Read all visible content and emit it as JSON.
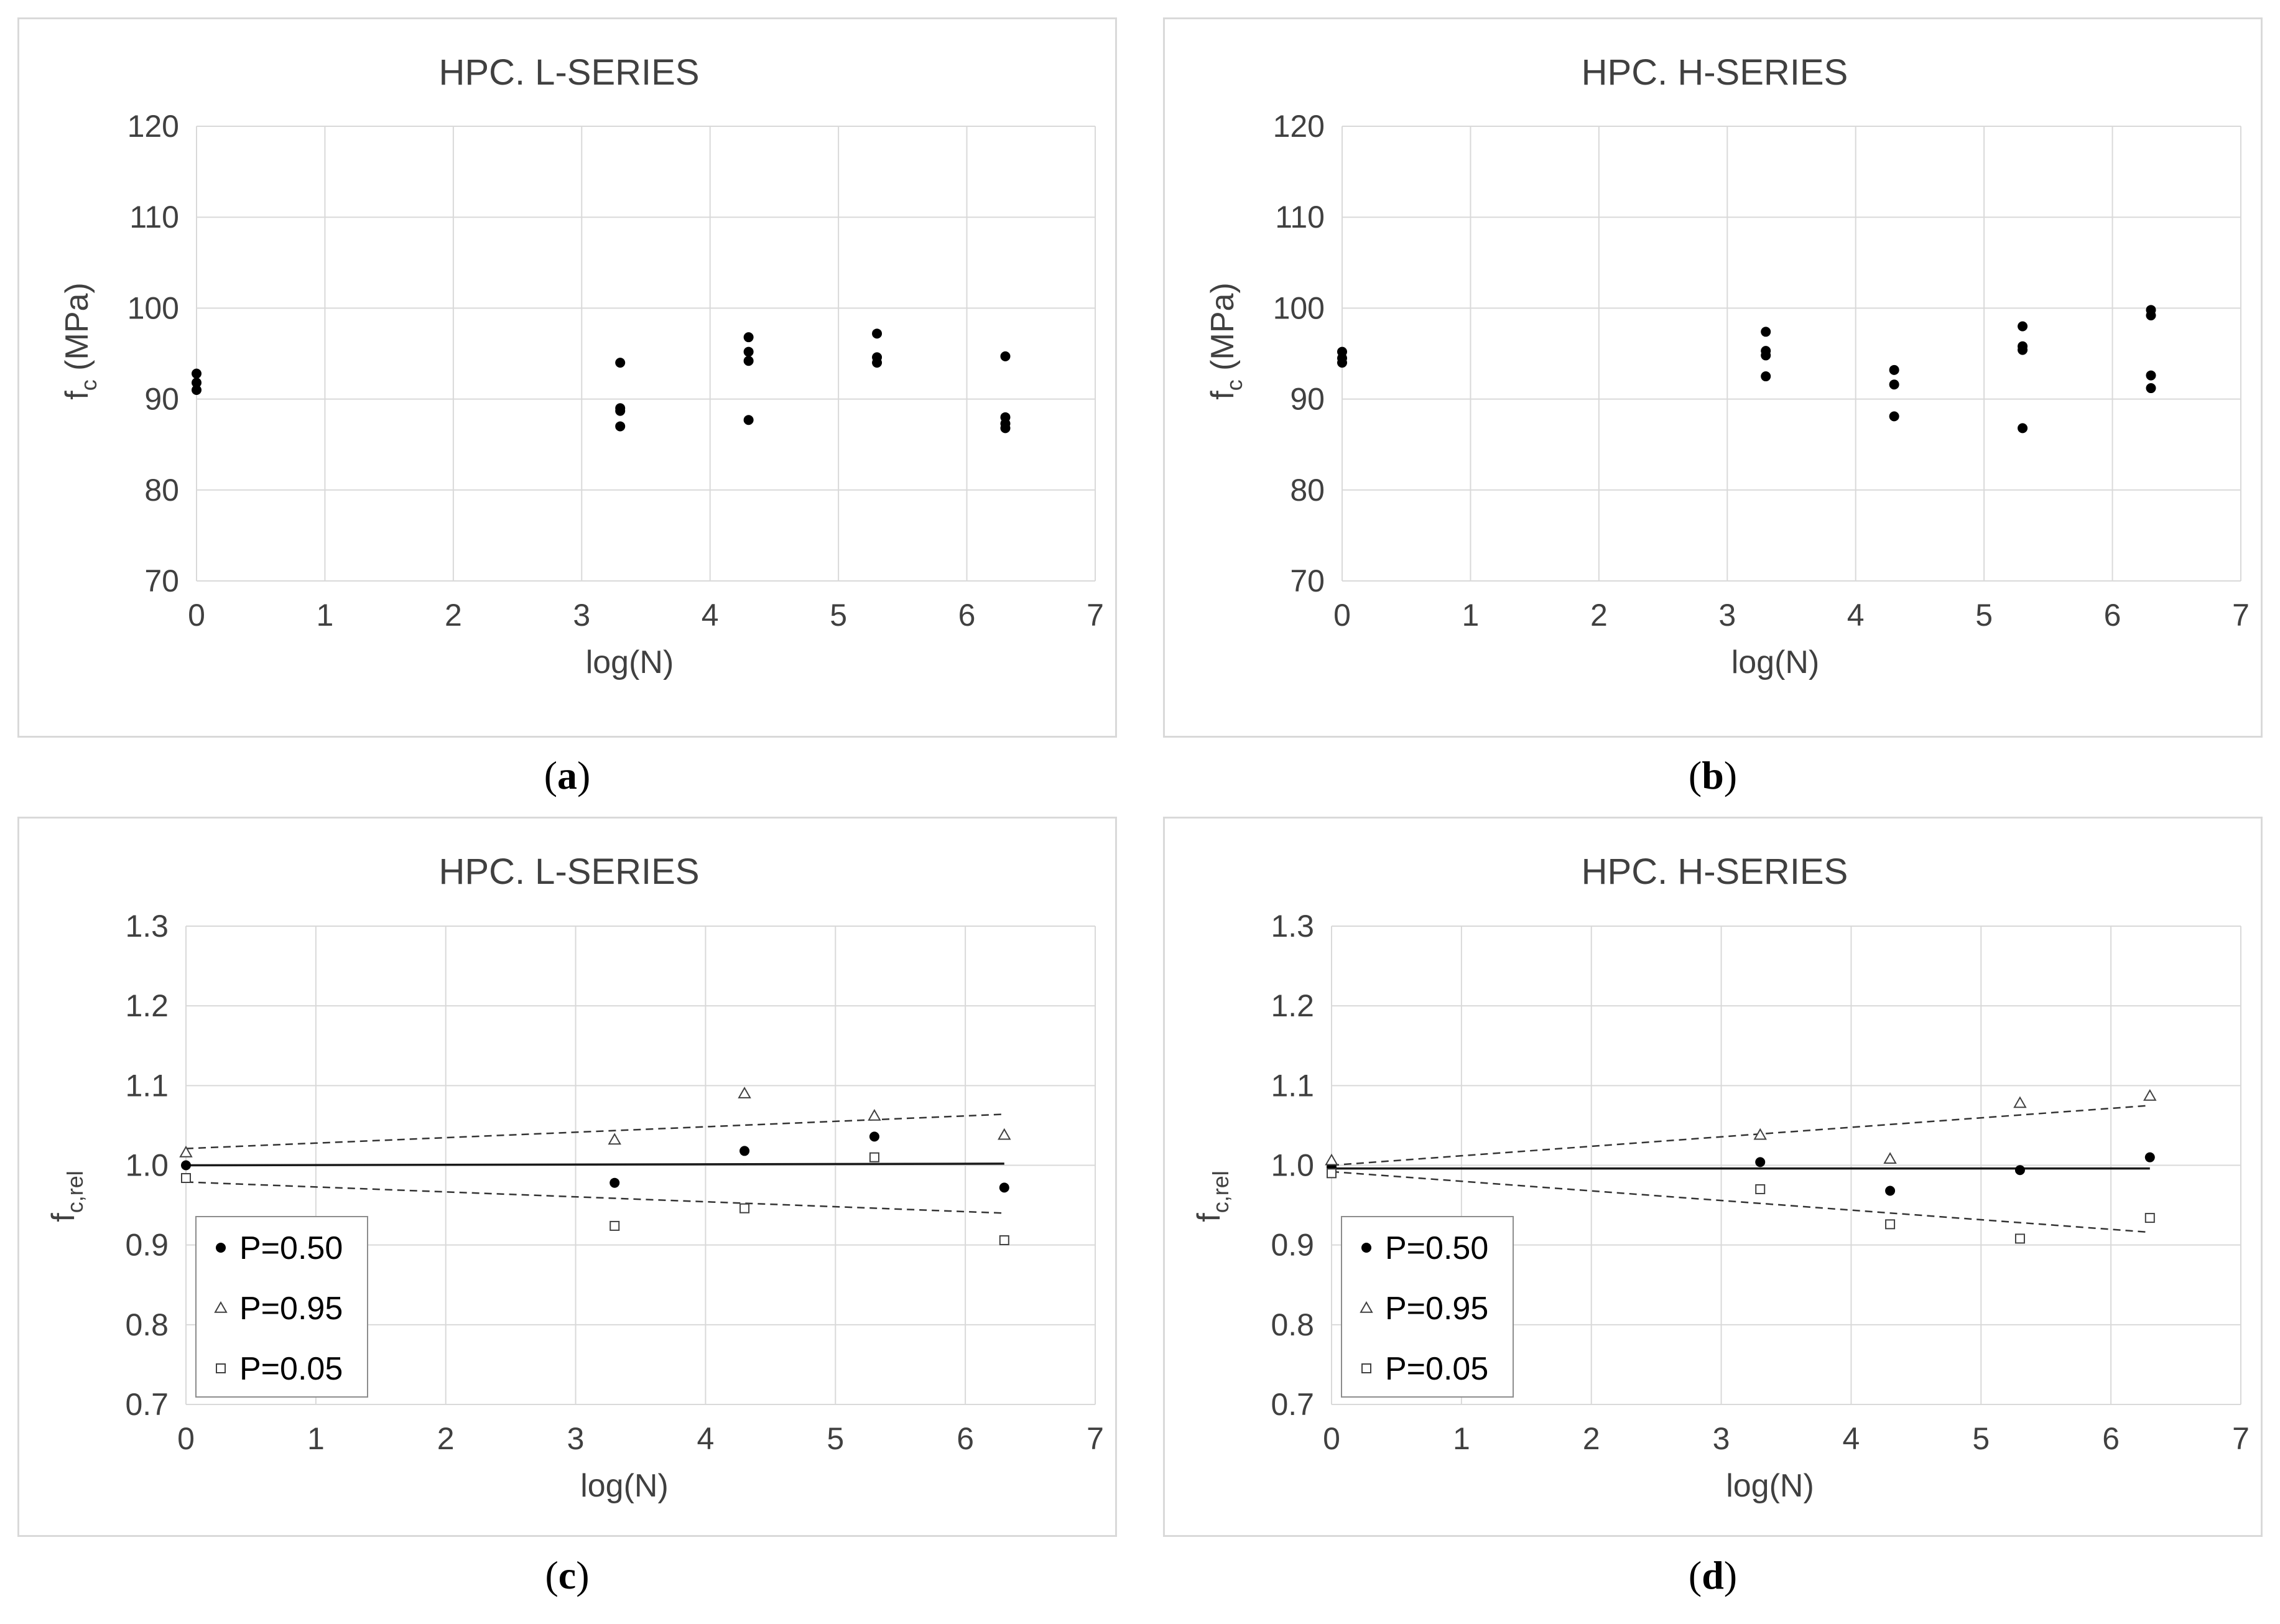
{
  "chart_data": [
    {
      "id": "a",
      "type": "scatter",
      "title": "HPC. L-SERIES",
      "xlabel": "log(N)",
      "ylabel_main": "f",
      "ylabel_sub": "c",
      "ylabel_suffix": " (MPa)",
      "xlim": [
        0,
        7
      ],
      "ylim": [
        70,
        120
      ],
      "xticks": [
        0,
        1,
        2,
        3,
        4,
        5,
        6,
        7
      ],
      "yticks": [
        70,
        80,
        90,
        100,
        110,
        120
      ],
      "grid": true,
      "legend": null,
      "caption_open": "(",
      "caption_letter": "a",
      "caption_close": ")",
      "series": [
        {
          "marker": "dot",
          "points": [
            [
              0,
              92.8
            ],
            [
              0,
              91.8
            ],
            [
              0,
              91.0
            ],
            [
              3.3,
              94.0
            ],
            [
              3.3,
              89.0
            ],
            [
              3.3,
              88.7
            ],
            [
              3.3,
              87.0
            ],
            [
              4.3,
              96.8
            ],
            [
              4.3,
              95.2
            ],
            [
              4.3,
              94.2
            ],
            [
              4.3,
              87.7
            ],
            [
              5.3,
              97.2
            ],
            [
              5.3,
              94.6
            ],
            [
              5.3,
              94.0
            ],
            [
              6.3,
              94.7
            ],
            [
              6.3,
              88.0
            ],
            [
              6.3,
              87.3
            ],
            [
              6.3,
              86.8
            ]
          ]
        }
      ],
      "lines": []
    },
    {
      "id": "b",
      "type": "scatter",
      "title": "HPC. H-SERIES",
      "xlabel": "log(N)",
      "ylabel_main": "f",
      "ylabel_sub": "c",
      "ylabel_suffix": " (MPa)",
      "xlim": [
        0,
        7
      ],
      "ylim": [
        70,
        120
      ],
      "xticks": [
        0,
        1,
        2,
        3,
        4,
        5,
        6,
        7
      ],
      "yticks": [
        70,
        80,
        90,
        100,
        110,
        120
      ],
      "grid": true,
      "legend": null,
      "caption_open": "(",
      "caption_letter": "b",
      "caption_close": ")",
      "series": [
        {
          "marker": "dot",
          "points": [
            [
              0,
              95.2
            ],
            [
              0,
              94.5
            ],
            [
              0,
              94.0
            ],
            [
              3.3,
              97.4
            ],
            [
              3.3,
              95.3
            ],
            [
              3.3,
              94.8
            ],
            [
              3.3,
              92.5
            ],
            [
              4.3,
              93.2
            ],
            [
              4.3,
              91.6
            ],
            [
              4.3,
              88.1
            ],
            [
              5.3,
              98.0
            ],
            [
              5.3,
              95.8
            ],
            [
              5.3,
              95.4
            ],
            [
              5.3,
              86.8
            ],
            [
              6.3,
              99.8
            ],
            [
              6.3,
              99.2
            ],
            [
              6.3,
              92.6
            ],
            [
              6.3,
              91.2
            ]
          ]
        }
      ],
      "lines": []
    },
    {
      "id": "c",
      "type": "scatter",
      "title": "HPC. L-SERIES",
      "xlabel": "log(N)",
      "ylabel_main": "f",
      "ylabel_sub": "c,rel",
      "ylabel_suffix": "",
      "xlim": [
        0,
        7
      ],
      "ylim": [
        0.7,
        1.3
      ],
      "xticks": [
        0,
        1,
        2,
        3,
        4,
        5,
        6,
        7
      ],
      "yticks": [
        "0.7",
        "0.8",
        "0.9",
        "1.0",
        "1.1",
        "1.2",
        "1.3"
      ],
      "grid": true,
      "legend": "bottom-left",
      "caption_open": "(",
      "caption_letter": "c",
      "caption_close": ")",
      "series": [
        {
          "name": "P=0.50",
          "marker": "dot",
          "points": [
            [
              0,
              1.0
            ],
            [
              3.3,
              0.978
            ],
            [
              4.3,
              1.018
            ],
            [
              5.3,
              1.036
            ],
            [
              6.3,
              0.972
            ]
          ]
        },
        {
          "name": "P=0.95",
          "marker": "triangle",
          "points": [
            [
              0,
              1.016
            ],
            [
              3.3,
              1.032
            ],
            [
              4.3,
              1.09
            ],
            [
              5.3,
              1.062
            ],
            [
              6.3,
              1.038
            ]
          ]
        },
        {
          "name": "P=0.05",
          "marker": "square",
          "points": [
            [
              0,
              0.984
            ],
            [
              3.3,
              0.924
            ],
            [
              4.3,
              0.946
            ],
            [
              5.3,
              1.01
            ],
            [
              6.3,
              0.906
            ]
          ]
        }
      ],
      "lines": [
        {
          "style": "solid",
          "from": [
            0,
            1.0
          ],
          "to": [
            6.3,
            1.002
          ]
        },
        {
          "style": "dashed",
          "from": [
            0,
            1.021
          ],
          "to": [
            6.3,
            1.064
          ]
        },
        {
          "style": "dashed",
          "from": [
            0,
            0.979
          ],
          "to": [
            6.3,
            0.94
          ]
        }
      ]
    },
    {
      "id": "d",
      "type": "scatter",
      "title": "HPC. H-SERIES",
      "xlabel": "log(N)",
      "ylabel_main": "f",
      "ylabel_sub": "c,rel",
      "ylabel_suffix": "",
      "xlim": [
        0,
        7
      ],
      "ylim": [
        0.7,
        1.3
      ],
      "xticks": [
        0,
        1,
        2,
        3,
        4,
        5,
        6,
        7
      ],
      "yticks": [
        "0.7",
        "0.8",
        "0.9",
        "1.0",
        "1.1",
        "1.2",
        "1.3"
      ],
      "grid": true,
      "legend": "bottom-left",
      "caption_open": "(",
      "caption_letter": "d",
      "caption_close": ")",
      "series": [
        {
          "name": "P=0.50",
          "marker": "dot",
          "points": [
            [
              0,
              0.998
            ],
            [
              3.3,
              1.004
            ],
            [
              4.3,
              0.968
            ],
            [
              5.3,
              0.994
            ],
            [
              6.3,
              1.01
            ]
          ]
        },
        {
          "name": "P=0.95",
          "marker": "triangle",
          "points": [
            [
              0,
              1.006
            ],
            [
              3.3,
              1.038
            ],
            [
              4.3,
              1.008
            ],
            [
              5.3,
              1.078
            ],
            [
              6.3,
              1.087
            ]
          ]
        },
        {
          "name": "P=0.05",
          "marker": "square",
          "points": [
            [
              0,
              0.99
            ],
            [
              3.3,
              0.97
            ],
            [
              4.3,
              0.926
            ],
            [
              5.3,
              0.908
            ],
            [
              6.3,
              0.934
            ]
          ]
        }
      ],
      "lines": [
        {
          "style": "solid",
          "from": [
            0,
            0.996
          ],
          "to": [
            6.3,
            0.996
          ]
        },
        {
          "style": "dashed",
          "from": [
            0,
            1.0
          ],
          "to": [
            6.3,
            1.075
          ]
        },
        {
          "style": "dashed",
          "from": [
            0,
            0.992
          ],
          "to": [
            6.3,
            0.916
          ]
        }
      ]
    }
  ]
}
